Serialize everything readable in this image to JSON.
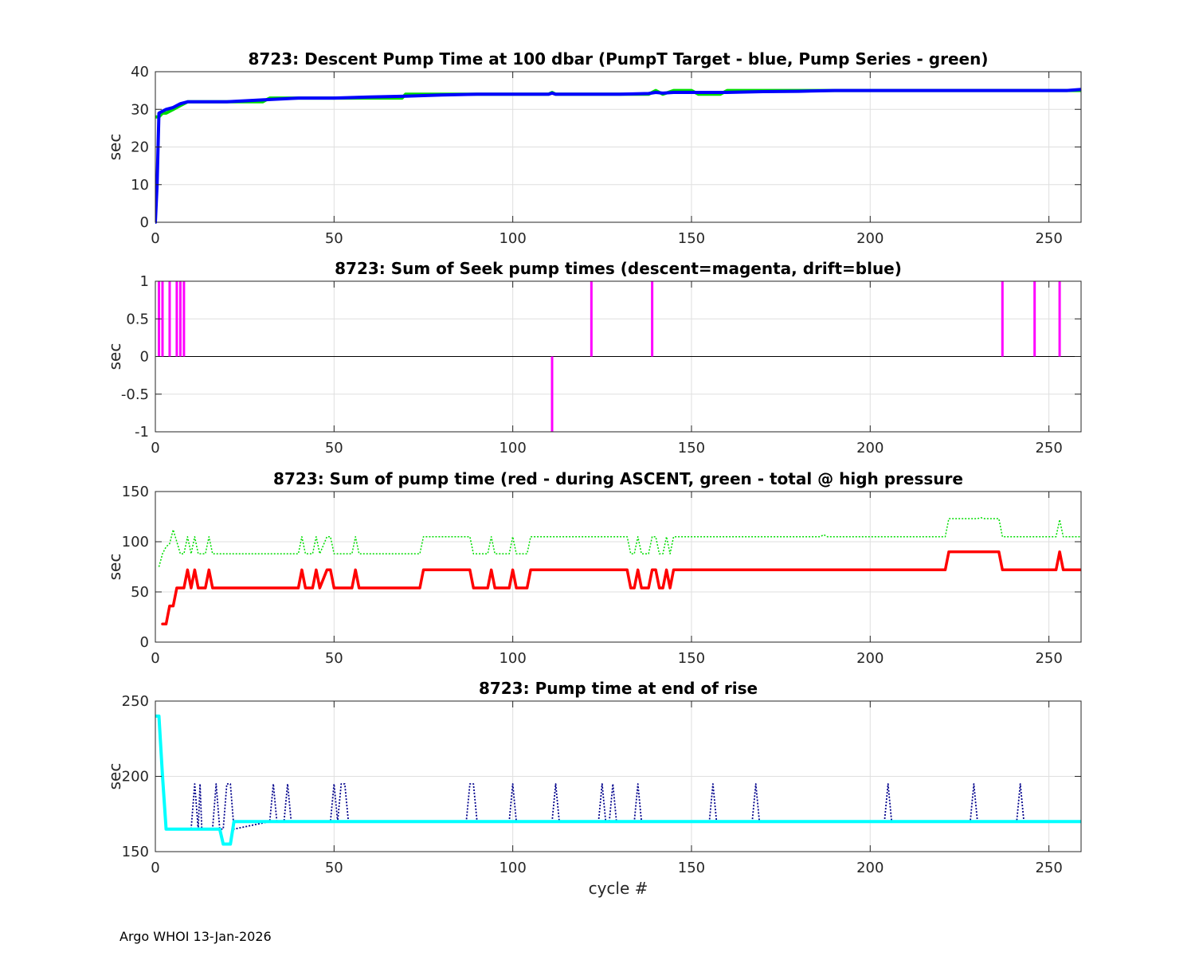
{
  "footer": "Argo WHOI 13-Jan-2026",
  "chart_data": [
    {
      "type": "line",
      "title": "8723: Descent Pump Time at 100 dbar (PumpT Target - blue, Pump Series - green)",
      "xlabel": "",
      "ylabel": "sec",
      "xlim": [
        0,
        259
      ],
      "ylim": [
        0,
        40
      ],
      "xticks": [
        0,
        50,
        100,
        150,
        200,
        250
      ],
      "yticks": [
        0,
        10,
        20,
        30,
        40
      ],
      "grid": true,
      "series": [
        {
          "color": "#00dd00",
          "width": 4,
          "dash": "",
          "x": [
            0,
            1,
            2,
            3,
            5,
            7,
            9,
            12,
            20,
            30,
            31,
            32,
            40,
            50,
            60,
            69,
            70,
            80,
            90,
            100,
            110,
            111,
            112,
            120,
            130,
            138,
            140,
            142,
            145,
            146,
            150,
            152,
            158,
            160,
            170,
            180,
            190,
            200,
            210,
            220,
            230,
            240,
            245,
            250,
            255,
            259
          ],
          "y": [
            28,
            28,
            29,
            29,
            30,
            31,
            32,
            32,
            32,
            32,
            32.5,
            33,
            33,
            33,
            33,
            33,
            34,
            34,
            34,
            34,
            34,
            34.5,
            34,
            34,
            34,
            34,
            35,
            34,
            35,
            35,
            35,
            34,
            34,
            35,
            35,
            35,
            35,
            35,
            35,
            35,
            35,
            35,
            35,
            35,
            35,
            35
          ]
        },
        {
          "color": "#0000ff",
          "width": 4,
          "dash": "",
          "x": [
            0,
            0.5,
            1,
            2,
            3,
            5,
            7,
            9,
            12,
            20,
            30,
            40,
            50,
            60,
            70,
            80,
            90,
            100,
            110,
            111,
            112,
            120,
            130,
            138,
            140,
            142,
            145,
            150,
            160,
            170,
            180,
            190,
            200,
            210,
            220,
            230,
            240,
            245,
            250,
            255,
            259
          ],
          "y": [
            0,
            10,
            29,
            29.5,
            30,
            30.5,
            31.5,
            32,
            32,
            32,
            32.5,
            33,
            33,
            33.3,
            33.5,
            33.8,
            34,
            34,
            34,
            34.3,
            34,
            34,
            34,
            34.2,
            34.5,
            34.3,
            34.5,
            34.5,
            34.5,
            34.7,
            34.8,
            35,
            35,
            35,
            35,
            35,
            35,
            35,
            35,
            35,
            35.3
          ]
        }
      ]
    },
    {
      "type": "bar",
      "title": "8723: Sum of Seek pump times (descent=magenta, drift=blue)",
      "xlabel": "",
      "ylabel": "sec",
      "xlim": [
        0,
        259
      ],
      "ylim": [
        -1,
        1
      ],
      "xticks": [
        0,
        50,
        100,
        150,
        200,
        250
      ],
      "yticks": [
        -1,
        -0.5,
        0,
        0.5,
        1
      ],
      "grid": true,
      "bar_color": "#ff00ff",
      "x": [
        1,
        2,
        4,
        6,
        7,
        8,
        111,
        122,
        139,
        237,
        246,
        253
      ],
      "values": [
        1,
        1,
        1,
        1,
        1,
        1,
        -1,
        1,
        1,
        1,
        1,
        1
      ]
    },
    {
      "type": "line",
      "title": "8723: Sum of pump time (red - during ASCENT, green - total @ high pressure",
      "xlabel": "",
      "ylabel": "sec",
      "xlim": [
        0,
        259
      ],
      "ylim": [
        0,
        150
      ],
      "xticks": [
        0,
        50,
        100,
        150,
        200,
        250
      ],
      "yticks": [
        0,
        50,
        100,
        150
      ],
      "grid": true,
      "series": [
        {
          "color": "#00dd00",
          "width": 1.5,
          "dash": "2,2",
          "x": [
            1,
            2,
            3,
            4,
            5,
            6,
            7,
            8,
            9,
            10,
            11,
            12,
            14,
            15,
            16,
            40,
            41,
            42,
            44,
            45,
            46,
            48,
            49,
            50,
            51,
            55,
            56,
            57,
            74,
            75,
            88,
            89,
            90,
            93,
            94,
            95,
            99,
            100,
            101,
            104,
            105,
            132,
            133,
            134,
            135,
            136,
            138,
            139,
            140,
            141,
            142,
            143,
            144,
            145,
            180,
            186,
            187,
            188,
            200,
            221,
            222,
            230,
            231,
            232,
            236,
            237,
            240,
            252,
            253,
            254,
            259
          ],
          "y": [
            75,
            88,
            95,
            98,
            112,
            100,
            88,
            88,
            105,
            88,
            105,
            88,
            88,
            105,
            88,
            88,
            105,
            88,
            88,
            105,
            88,
            105,
            105,
            88,
            88,
            88,
            105,
            88,
            88,
            105,
            105,
            88,
            88,
            88,
            105,
            88,
            88,
            105,
            88,
            88,
            105,
            105,
            88,
            88,
            105,
            88,
            88,
            105,
            105,
            88,
            88,
            105,
            88,
            105,
            105,
            105,
            107,
            105,
            105,
            105,
            123,
            123,
            124,
            123,
            123,
            105,
            105,
            105,
            122,
            105,
            105
          ]
        },
        {
          "color": "#ff0000",
          "width": 3.5,
          "dash": "",
          "x": [
            2,
            3,
            4,
            5,
            6,
            7,
            8,
            9,
            10,
            11,
            12,
            14,
            15,
            16,
            40,
            41,
            42,
            44,
            45,
            46,
            48,
            49,
            50,
            51,
            55,
            56,
            57,
            74,
            75,
            88,
            89,
            90,
            93,
            94,
            95,
            99,
            100,
            101,
            104,
            105,
            132,
            133,
            134,
            135,
            136,
            138,
            139,
            140,
            141,
            142,
            143,
            144,
            145,
            221,
            222,
            236,
            237,
            252,
            253,
            254,
            259
          ],
          "y": [
            18,
            18,
            36,
            36,
            54,
            54,
            54,
            72,
            54,
            72,
            54,
            54,
            72,
            54,
            54,
            72,
            54,
            54,
            72,
            54,
            72,
            72,
            54,
            54,
            54,
            72,
            54,
            54,
            72,
            72,
            54,
            54,
            54,
            72,
            54,
            54,
            72,
            54,
            54,
            72,
            72,
            54,
            54,
            72,
            54,
            54,
            72,
            72,
            54,
            54,
            72,
            54,
            72,
            72,
            90,
            90,
            72,
            72,
            90,
            72,
            72
          ]
        }
      ]
    },
    {
      "type": "line",
      "title": "8723: Pump time at end of rise",
      "xlabel": "cycle #",
      "ylabel": "sec",
      "xlim": [
        0,
        259
      ],
      "ylim": [
        150,
        250
      ],
      "xticks": [
        0,
        50,
        100,
        150,
        200,
        250
      ],
      "yticks": [
        150,
        200,
        250
      ],
      "grid": true,
      "series": [
        {
          "color": "#00008b",
          "width": 1.8,
          "dash": "2,2",
          "x": [
            10,
            11,
            12,
            12.5,
            13,
            14,
            16,
            17,
            18,
            19,
            20,
            21,
            22,
            32,
            33,
            34,
            36,
            37,
            38,
            49,
            50,
            51,
            52,
            53,
            54,
            55,
            87,
            88,
            89,
            90,
            99,
            100,
            101,
            111,
            112,
            113,
            124,
            125,
            126,
            127,
            128,
            129,
            134,
            135,
            136,
            155,
            156,
            157,
            167,
            168,
            169,
            204,
            205,
            206,
            228,
            229,
            230,
            241,
            242,
            243
          ],
          "y": [
            165,
            195,
            165,
            195,
            165,
            165,
            165,
            195,
            165,
            165,
            195,
            195,
            165,
            170,
            195,
            170,
            170,
            195,
            170,
            170,
            195,
            170,
            195,
            195,
            170,
            170,
            170,
            195,
            195,
            170,
            170,
            195,
            170,
            170,
            195,
            170,
            170,
            195,
            170,
            170,
            195,
            170,
            170,
            195,
            170,
            170,
            195,
            170,
            170,
            195,
            170,
            170,
            195,
            170,
            170,
            195,
            170,
            170,
            195,
            170
          ]
        },
        {
          "color": "#00ffff",
          "width": 4,
          "dash": "",
          "x": [
            0,
            1,
            2,
            3,
            8,
            13,
            18,
            19,
            21,
            22,
            23,
            259
          ],
          "y": [
            240,
            240,
            200,
            165,
            165,
            165,
            165,
            155,
            155,
            170,
            170,
            170
          ]
        }
      ]
    }
  ]
}
